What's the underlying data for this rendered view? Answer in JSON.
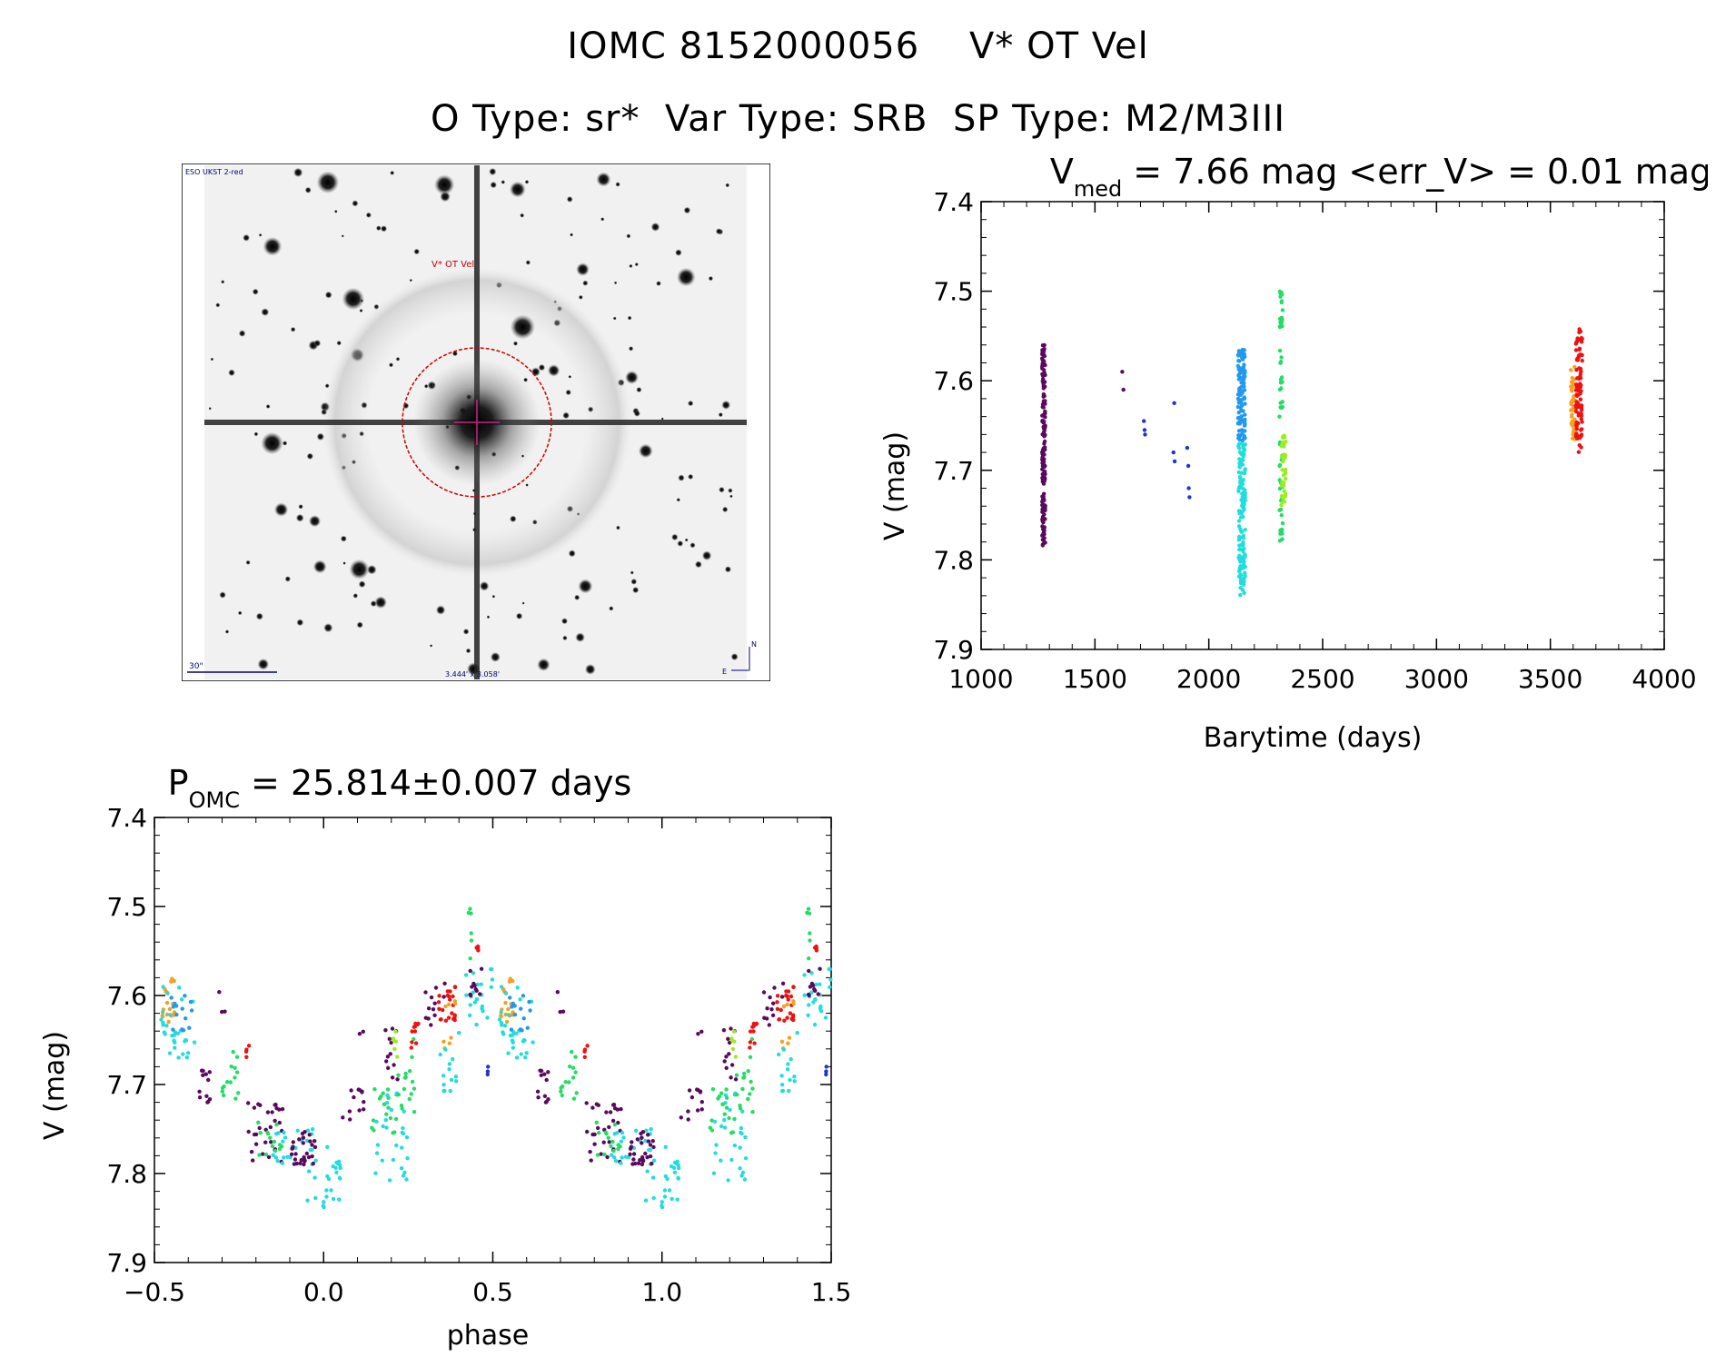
{
  "header": {
    "line1": "IOMC 8152000056    V* OT Vel",
    "line2": "O Type: sr*  Var Type: SRB  SP Type: M2/M3III"
  },
  "image": {
    "survey_label": "ESO UKST 2-red",
    "object_label": "V* OT Vel",
    "scale_label": "30\"",
    "size_label": "3.444' x 3.058'",
    "north_label": "N",
    "east_label": "E"
  },
  "colors": {
    "purple": "#5a0a5e",
    "blue": "#2233cc",
    "lightblue": "#2299ee",
    "cyan": "#22dddd",
    "green": "#22dd66",
    "yellowgreen": "#99ee22",
    "orange": "#f5a020",
    "red": "#ee1111",
    "marker": "#cc0000"
  },
  "chart_data": [
    {
      "type": "scatter",
      "title_main": "V",
      "title_sub": "med",
      "title_rest": " = 7.66 mag <err_V> = 0.01 mag",
      "xlabel": "Barytime (days)",
      "ylabel": "V (mag)",
      "xlim": [
        1000,
        4000
      ],
      "ylim": [
        7.4,
        7.9
      ],
      "y_inverted": true,
      "xticks": [
        "1000",
        "1500",
        "2000",
        "2500",
        "3000",
        "3500",
        "4000"
      ],
      "yticks": [
        "7.4",
        "7.5",
        "7.6",
        "7.7",
        "7.8",
        "7.9"
      ],
      "series": [
        {
          "name": "purple",
          "color": "purple",
          "x_range": [
            1268,
            1282
          ],
          "y_range": [
            7.56,
            7.79
          ],
          "count": 150
        },
        {
          "name": "purple-sparse",
          "color": "purple",
          "points": [
            [
              1620,
              7.59
            ],
            [
              1625,
              7.61
            ]
          ]
        },
        {
          "name": "blue",
          "color": "blue",
          "points": [
            [
              1715,
              7.645
            ],
            [
              1718,
              7.655
            ],
            [
              1720,
              7.66
            ],
            [
              1848,
              7.625
            ],
            [
              1845,
              7.68
            ],
            [
              1850,
              7.69
            ],
            [
              1905,
              7.675
            ],
            [
              1910,
              7.695
            ],
            [
              1912,
              7.72
            ],
            [
              1915,
              7.73
            ]
          ]
        },
        {
          "name": "lightblue",
          "color": "lightblue",
          "x_range": [
            2128,
            2160
          ],
          "y_range": [
            7.565,
            7.67
          ],
          "count": 110
        },
        {
          "name": "cyan",
          "color": "cyan",
          "x_range": [
            2130,
            2160
          ],
          "y_range": [
            7.67,
            7.84
          ],
          "count": 140
        },
        {
          "name": "green",
          "color": "green",
          "x_range": [
            2310,
            2325
          ],
          "y_range": [
            7.5,
            7.78
          ],
          "count": 60
        },
        {
          "name": "yellowgreen",
          "color": "yellowgreen",
          "x_range": [
            2318,
            2338
          ],
          "y_range": [
            7.66,
            7.74
          ],
          "count": 40
        },
        {
          "name": "orange",
          "color": "orange",
          "x_range": [
            3590,
            3610
          ],
          "y_range": [
            7.58,
            7.67
          ],
          "count": 45
        },
        {
          "name": "red",
          "color": "red",
          "x_range": [
            3612,
            3640
          ],
          "y_range": [
            7.54,
            7.68
          ],
          "count": 90
        }
      ]
    },
    {
      "type": "scatter",
      "title_main": "P",
      "title_sub": "OMC",
      "title_rest": " = 25.814±0.007 days",
      "xlabel": "phase",
      "ylabel": "V (mag)",
      "xlim": [
        -0.5,
        1.5
      ],
      "ylim": [
        7.4,
        7.9
      ],
      "y_inverted": true,
      "xticks": [
        "−0.5",
        "0.0",
        "0.5",
        "1.0",
        "1.5"
      ],
      "yticks": [
        "7.4",
        "7.5",
        "7.6",
        "7.7",
        "7.8",
        "7.9"
      ],
      "period_fold": true,
      "clusters": [
        {
          "color": "orange",
          "phase": [
            -0.48,
            -0.44
          ],
          "y_range": [
            7.58,
            7.63
          ],
          "count": 18
        },
        {
          "color": "cyan",
          "phase": [
            -0.48,
            -0.38
          ],
          "y_range": [
            7.59,
            7.67
          ],
          "count": 30
        },
        {
          "color": "lightblue",
          "phase": [
            -0.45,
            -0.38
          ],
          "y_range": [
            7.6,
            7.64
          ],
          "count": 14
        },
        {
          "color": "purple",
          "phase": [
            -0.37,
            -0.33
          ],
          "y_range": [
            7.68,
            7.72
          ],
          "count": 12
        },
        {
          "color": "purple",
          "phase": [
            -0.31,
            -0.29
          ],
          "y_range": [
            7.59,
            7.62
          ],
          "count": 3
        },
        {
          "color": "green",
          "phase": [
            -0.3,
            -0.25
          ],
          "y_range": [
            7.66,
            7.72
          ],
          "count": 14
        },
        {
          "color": "red",
          "phase": [
            -0.23,
            -0.22
          ],
          "y_range": [
            7.65,
            7.67
          ],
          "count": 4
        },
        {
          "color": "purple",
          "phase": [
            -0.23,
            -0.12
          ],
          "y_range": [
            7.72,
            7.79
          ],
          "count": 30
        },
        {
          "color": "green",
          "phase": [
            -0.2,
            -0.12
          ],
          "y_range": [
            7.74,
            7.78
          ],
          "count": 14
        },
        {
          "color": "cyan",
          "phase": [
            -0.15,
            -0.03
          ],
          "y_range": [
            7.75,
            7.79
          ],
          "count": 22
        },
        {
          "color": "purple",
          "phase": [
            -0.1,
            -0.02
          ],
          "y_range": [
            7.75,
            7.79
          ],
          "count": 30
        },
        {
          "color": "cyan",
          "phase": [
            -0.05,
            0.05
          ],
          "y_range": [
            7.77,
            7.84
          ],
          "count": 26
        },
        {
          "color": "purple",
          "phase": [
            0.05,
            0.12
          ],
          "y_range": [
            7.7,
            7.75
          ],
          "count": 12
        },
        {
          "color": "purple",
          "phase": [
            0.1,
            0.12
          ],
          "y_range": [
            7.64,
            7.65
          ],
          "count": 2
        },
        {
          "color": "green",
          "phase": [
            0.14,
            0.22
          ],
          "y_range": [
            7.7,
            7.76
          ],
          "count": 18
        },
        {
          "color": "cyan",
          "phase": [
            0.15,
            0.25
          ],
          "y_range": [
            7.7,
            7.81
          ],
          "count": 26
        },
        {
          "color": "purple",
          "phase": [
            0.18,
            0.22
          ],
          "y_range": [
            7.63,
            7.7
          ],
          "count": 12
        },
        {
          "color": "yellowgreen",
          "phase": [
            0.2,
            0.22
          ],
          "y_range": [
            7.64,
            7.67
          ],
          "count": 6
        },
        {
          "color": "green",
          "phase": [
            0.22,
            0.27
          ],
          "y_range": [
            7.64,
            7.74
          ],
          "count": 16
        },
        {
          "color": "red",
          "phase": [
            0.25,
            0.28
          ],
          "y_range": [
            7.63,
            7.66
          ],
          "count": 10
        },
        {
          "color": "purple",
          "phase": [
            0.3,
            0.36
          ],
          "y_range": [
            7.58,
            7.64
          ],
          "count": 12
        },
        {
          "color": "red",
          "phase": [
            0.34,
            0.39
          ],
          "y_range": [
            7.59,
            7.63
          ],
          "count": 22
        },
        {
          "color": "orange",
          "phase": [
            0.35,
            0.39
          ],
          "y_range": [
            7.6,
            7.66
          ],
          "count": 8
        },
        {
          "color": "cyan",
          "phase": [
            0.34,
            0.4
          ],
          "y_range": [
            7.63,
            7.71
          ],
          "count": 14
        },
        {
          "color": "green",
          "phase": [
            0.42,
            0.44
          ],
          "y_range": [
            7.5,
            7.56
          ],
          "count": 6
        },
        {
          "color": "red",
          "phase": [
            0.45,
            0.46
          ],
          "y_range": [
            7.54,
            7.55
          ],
          "count": 5
        },
        {
          "color": "cyan",
          "phase": [
            0.42,
            0.5
          ],
          "y_range": [
            7.57,
            7.64
          ],
          "count": 22
        },
        {
          "color": "purple",
          "phase": [
            0.43,
            0.48
          ],
          "y_range": [
            7.57,
            7.61
          ],
          "count": 10
        },
        {
          "color": "blue",
          "phase": [
            0.48,
            0.49
          ],
          "y_range": [
            7.68,
            7.69
          ],
          "count": 3
        }
      ]
    }
  ]
}
